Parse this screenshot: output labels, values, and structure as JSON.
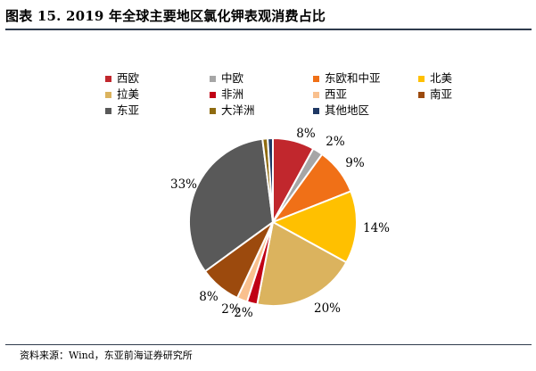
{
  "chart_data": {
    "type": "pie",
    "title": "图表 15. 2019 年全球主要地区氯化钾表观消费占比",
    "legend_position": "top",
    "start": "12 o'clock, clockwise",
    "slices": [
      {
        "name": "西欧",
        "value": 8,
        "label": "8%",
        "color": "#C1272D"
      },
      {
        "name": "中欧",
        "value": 2,
        "label": "2%",
        "color": "#A6A6A6"
      },
      {
        "name": "东欧和中亚",
        "value": 9,
        "label": "9%",
        "color": "#F07017"
      },
      {
        "name": "北美",
        "value": 14,
        "label": "14%",
        "color": "#FFC000"
      },
      {
        "name": "拉美",
        "value": 20,
        "label": "20%",
        "color": "#DBB35E"
      },
      {
        "name": "非洲",
        "value": 2,
        "label": "2%",
        "color": "#C00014"
      },
      {
        "name": "西亚",
        "value": 2,
        "label": "2%",
        "color": "#F9C08E"
      },
      {
        "name": "南亚",
        "value": 8,
        "label": "8%",
        "color": "#9C4A0D"
      },
      {
        "name": "东亚",
        "value": 33,
        "label": "33%",
        "color": "#595959"
      },
      {
        "name": "大洋洲",
        "value": 1,
        "label": "",
        "color": "#8F6B10"
      },
      {
        "name": "其他地区",
        "value": 1,
        "label": "",
        "color": "#1F3864"
      }
    ]
  },
  "source": "资料来源：Wind，东亚前海证券研究所"
}
